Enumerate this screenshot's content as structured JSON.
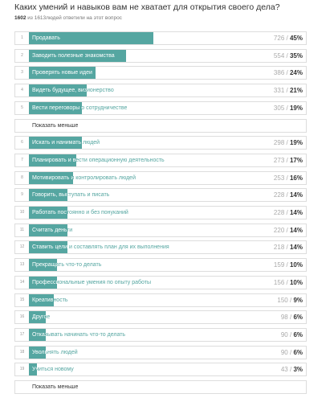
{
  "header": {
    "title": "Каких умений и навыков вам не хватает для открытия своего дела?",
    "answered": "1602",
    "subtitle": "из 1613людей ответили на этот вопрос"
  },
  "separator": "/",
  "show_less": "Показать меньше",
  "options": [
    {
      "number": 1,
      "label": "Продавать",
      "count": 726,
      "percent": 45,
      "percent_label": "45%"
    },
    {
      "number": 2,
      "label": "Заводить полезные знакомства",
      "count": 554,
      "percent": 35,
      "percent_label": "35%"
    },
    {
      "number": 3,
      "label": "Проверять новые идеи",
      "count": 386,
      "percent": 24,
      "percent_label": "24%"
    },
    {
      "number": 4,
      "label": "Видеть будущее, визионерство",
      "count": 331,
      "percent": 21,
      "percent_label": "21%"
    },
    {
      "number": 5,
      "label": "Вести переговоры о сотрудничестве",
      "count": 305,
      "percent": 19,
      "percent_label": "19%"
    },
    {
      "number": 6,
      "label": "Искать и нанимать людей",
      "count": 298,
      "percent": 19,
      "percent_label": "19%"
    },
    {
      "number": 7,
      "label": "Планировать и вести операционную деятельность",
      "count": 273,
      "percent": 17,
      "percent_label": "17%"
    },
    {
      "number": 8,
      "label": "Мотивировать и контролировать людей",
      "count": 253,
      "percent": 16,
      "percent_label": "16%"
    },
    {
      "number": 9,
      "label": "Говорить, выступать и писать",
      "count": 228,
      "percent": 14,
      "percent_label": "14%"
    },
    {
      "number": 10,
      "label": "Работать постоянно и без понуканий",
      "count": 228,
      "percent": 14,
      "percent_label": "14%"
    },
    {
      "number": 11,
      "label": "Считать деньги",
      "count": 220,
      "percent": 14,
      "percent_label": "14%"
    },
    {
      "number": 12,
      "label": "Ставить цели и составлять план для их выполнения",
      "count": 218,
      "percent": 14,
      "percent_label": "14%"
    },
    {
      "number": 13,
      "label": "Прекращать что-то делать",
      "count": 159,
      "percent": 10,
      "percent_label": "10%"
    },
    {
      "number": 14,
      "label": "Профессиональные умения по опыту работы",
      "count": 156,
      "percent": 10,
      "percent_label": "10%"
    },
    {
      "number": 15,
      "label": "Креативность",
      "count": 150,
      "percent": 9,
      "percent_label": "9%"
    },
    {
      "number": 16,
      "label": "Другое",
      "count": 98,
      "percent": 6,
      "percent_label": "6%"
    },
    {
      "number": 17,
      "label": "Отказывать начинать что-то делать",
      "count": 90,
      "percent": 6,
      "percent_label": "6%"
    },
    {
      "number": 18,
      "label": "Увольнять людей",
      "count": 90,
      "percent": 6,
      "percent_label": "6%"
    },
    {
      "number": 19,
      "label": "Учиться новому",
      "count": 43,
      "percent": 3,
      "percent_label": "3%"
    }
  ]
}
